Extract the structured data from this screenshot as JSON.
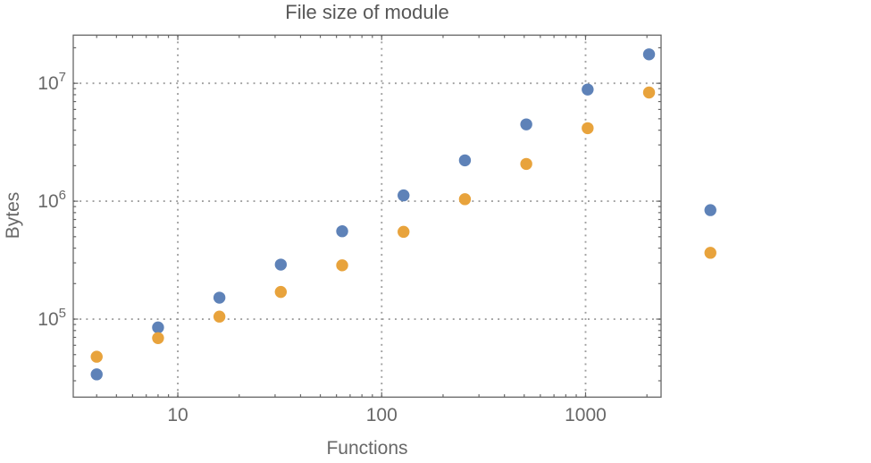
{
  "chart_data": {
    "type": "scatter",
    "title": "File size of module",
    "xlabel": "Functions",
    "ylabel": "Bytes",
    "x_scale": "log",
    "y_scale": "log",
    "xlim": [
      3.07,
      2346
    ],
    "ylim": [
      21800,
      25600000
    ],
    "grid": "dotted at decade gridlines",
    "legend": "none",
    "x": [
      4,
      8,
      16,
      32,
      64,
      128,
      256,
      512,
      1024,
      2048,
      4096
    ],
    "series": [
      {
        "name": "series-1-blue",
        "color": "#5e82b8",
        "values": [
          34000,
          85000,
          152000,
          290000,
          556000,
          1120000,
          2220000,
          4480000,
          8850000,
          17600000,
          840000
        ]
      },
      {
        "name": "series-2-orange",
        "color": "#e8a33c",
        "values": [
          48000,
          69000,
          105000,
          170000,
          286000,
          550000,
          1040000,
          2070000,
          4160000,
          8350000,
          365000
        ]
      }
    ],
    "x_ticks": [
      {
        "v": 10,
        "label": "10"
      },
      {
        "v": 100,
        "label": "100"
      },
      {
        "v": 1000,
        "label": "1000"
      }
    ],
    "y_ticks": [
      {
        "v": 100000,
        "base": "10",
        "exp": "5"
      },
      {
        "v": 1000000,
        "base": "10",
        "exp": "6"
      },
      {
        "v": 10000000,
        "base": "10",
        "exp": "7"
      }
    ],
    "style": {
      "frame_color": "#666666",
      "grid_color": "#9e9e9e",
      "label_color": "#686868",
      "title_color": "#575757",
      "point_radius": 6.7,
      "background": "#ffffff"
    }
  }
}
